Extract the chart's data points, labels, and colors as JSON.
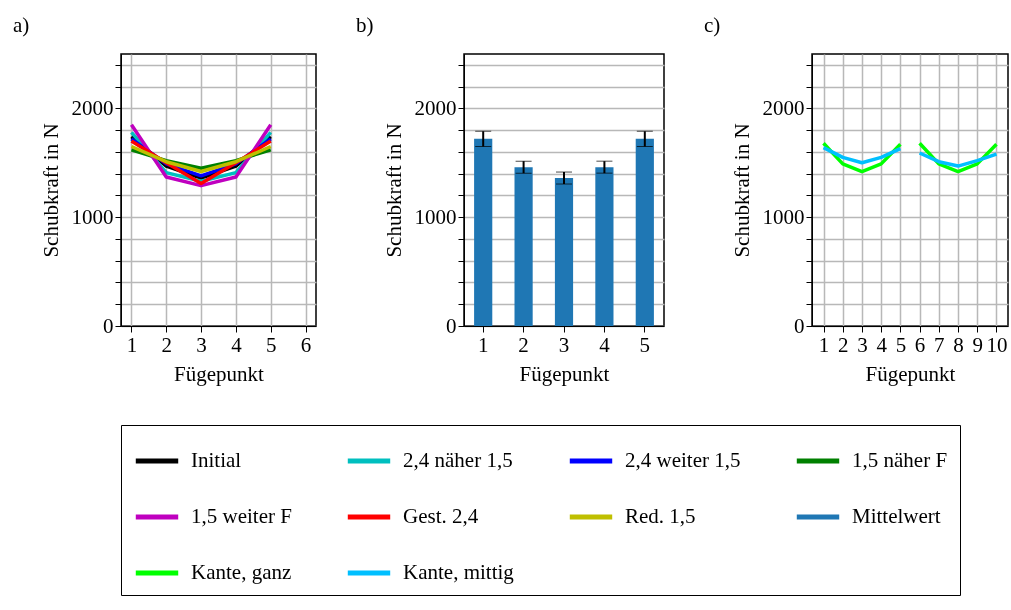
{
  "chart_data": [
    {
      "type": "line",
      "title": "a)",
      "xlabel": "Fügepunkt",
      "ylabel": "Schubkraft in N",
      "x": [
        1,
        2,
        3,
        4,
        5
      ],
      "xlim": [
        0.7,
        6.3
      ],
      "xticks": [
        1,
        2,
        3,
        4,
        5,
        6
      ],
      "ylim": [
        0,
        2500
      ],
      "yticks": [
        0,
        {
          "value": 200,
          "label": null
        },
        {
          "value": 400,
          "label": null
        },
        {
          "value": 600,
          "label": null
        },
        {
          "value": 800,
          "label": null
        },
        1000,
        {
          "value": 1200,
          "label": null
        },
        {
          "value": 1400,
          "label": null
        },
        {
          "value": 1600,
          "label": null
        },
        {
          "value": 1800,
          "label": null
        },
        2000,
        {
          "value": 2200,
          "label": null
        },
        {
          "value": 2400,
          "label": null
        }
      ],
      "grid": true,
      "legend": "bottom",
      "series": [
        {
          "name": "Initial",
          "color": "#000000",
          "values": [
            1740,
            1470,
            1360,
            1470,
            1740
          ]
        },
        {
          "name": "2,4 näher 1,5",
          "color": "#00bfbf",
          "values": [
            1780,
            1410,
            1330,
            1410,
            1780
          ]
        },
        {
          "name": "2,4 weiter 1,5",
          "color": "#0000ff",
          "values": [
            1720,
            1490,
            1380,
            1490,
            1720
          ]
        },
        {
          "name": "1,5 näher F",
          "color": "#008000",
          "values": [
            1620,
            1520,
            1450,
            1520,
            1620
          ]
        },
        {
          "name": "1,5 weiter F",
          "color": "#bf00bf",
          "values": [
            1850,
            1370,
            1290,
            1370,
            1850
          ]
        },
        {
          "name": "Gest. 2,4",
          "color": "#ff0000",
          "values": [
            1700,
            1500,
            1310,
            1500,
            1700
          ]
        },
        {
          "name": "Red. 1,5",
          "color": "#bfbf00",
          "values": [
            1650,
            1510,
            1420,
            1510,
            1650
          ]
        }
      ]
    },
    {
      "type": "bar",
      "title": "b)",
      "xlabel": "Fügepunkt",
      "ylabel": "Schubkraft in N",
      "categories": [
        "1",
        "2",
        "3",
        "4",
        "5"
      ],
      "ylim": [
        0,
        2500
      ],
      "yticks": [
        0,
        {
          "value": 200,
          "label": null
        },
        {
          "value": 400,
          "label": null
        },
        {
          "value": 600,
          "label": null
        },
        {
          "value": 800,
          "label": null
        },
        1000,
        {
          "value": 1200,
          "label": null
        },
        {
          "value": 1400,
          "label": null
        },
        {
          "value": 1600,
          "label": null
        },
        {
          "value": 1800,
          "label": null
        },
        2000,
        {
          "value": 2200,
          "label": null
        },
        {
          "value": 2400,
          "label": null
        }
      ],
      "grid": "y",
      "legend": "bottom",
      "series": [
        {
          "name": "Mittelwert",
          "color": "#1f77b4",
          "values": [
            1720,
            1460,
            1360,
            1460,
            1720
          ],
          "errors": [
            70,
            55,
            55,
            55,
            70
          ]
        }
      ]
    },
    {
      "type": "line",
      "title": "c)",
      "xlabel": "Fügepunkt",
      "ylabel": "Schubkraft in N",
      "x": [
        1,
        2,
        3,
        4,
        5,
        5.5,
        6,
        7,
        8,
        9,
        10
      ],
      "xlim": [
        0.4,
        10.6
      ],
      "xticks": [
        1,
        2,
        3,
        4,
        5,
        6,
        7,
        8,
        9,
        10
      ],
      "ylim": [
        0,
        2500
      ],
      "yticks": [
        0,
        {
          "value": 200,
          "label": null
        },
        {
          "value": 400,
          "label": null
        },
        {
          "value": 600,
          "label": null
        },
        {
          "value": 800,
          "label": null
        },
        1000,
        {
          "value": 1200,
          "label": null
        },
        {
          "value": 1400,
          "label": null
        },
        {
          "value": 1600,
          "label": null
        },
        {
          "value": 1800,
          "label": null
        },
        2000,
        {
          "value": 2200,
          "label": null
        },
        {
          "value": 2400,
          "label": null
        }
      ],
      "grid": true,
      "legend": "bottom",
      "series": [
        {
          "name": "Kante, ganz",
          "color": "#00ff00",
          "values": [
            1680,
            1490,
            1420,
            1490,
            1670,
            null,
            1680,
            1490,
            1420,
            1490,
            1670
          ]
        },
        {
          "name": "Kante, mittig",
          "color": "#00bfff",
          "values": [
            1640,
            1550,
            1500,
            1550,
            1630,
            null,
            1590,
            1510,
            1470,
            1520,
            1580
          ]
        }
      ]
    }
  ]
}
